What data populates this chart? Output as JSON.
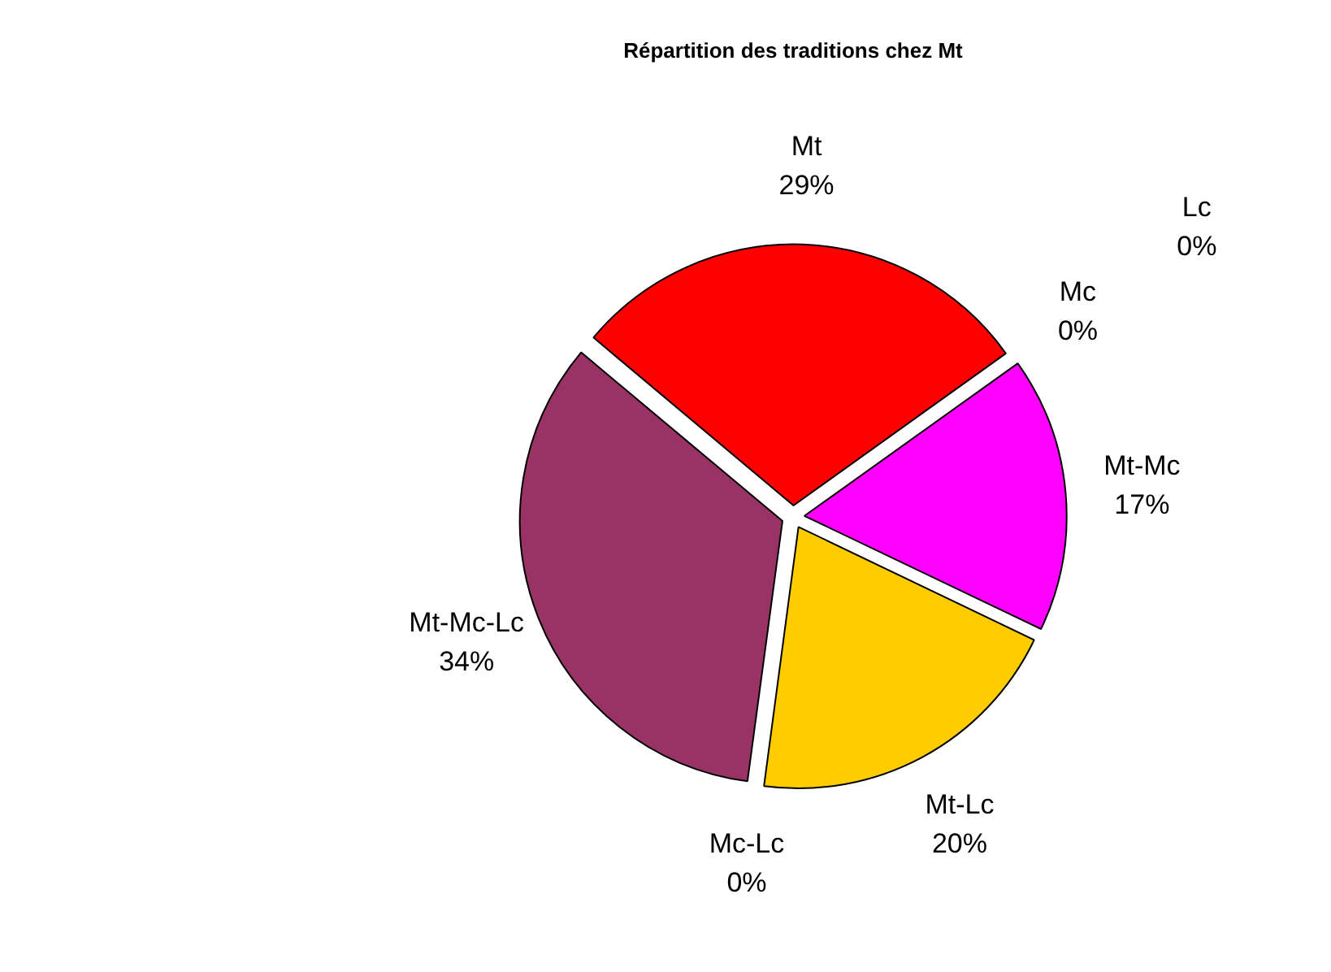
{
  "chart_data": {
    "type": "pie",
    "title": "Répartition des traditions chez Mt",
    "categories": [
      "Mt",
      "Mc",
      "Lc",
      "Mt-Mc",
      "Mt-Lc",
      "Mc-Lc",
      "Mt-Mc-Lc"
    ],
    "values": [
      29,
      0,
      0,
      17,
      20,
      0,
      34
    ],
    "value_labels": [
      "29%",
      "0%",
      "0%",
      "17%",
      "20%",
      "0%",
      "34%"
    ],
    "colors": [
      "#ff0000",
      "#ff8000",
      "#ffff00",
      "#ff00ff",
      "#ffcc00",
      "#00ffff",
      "#993366"
    ],
    "legend": false
  }
}
